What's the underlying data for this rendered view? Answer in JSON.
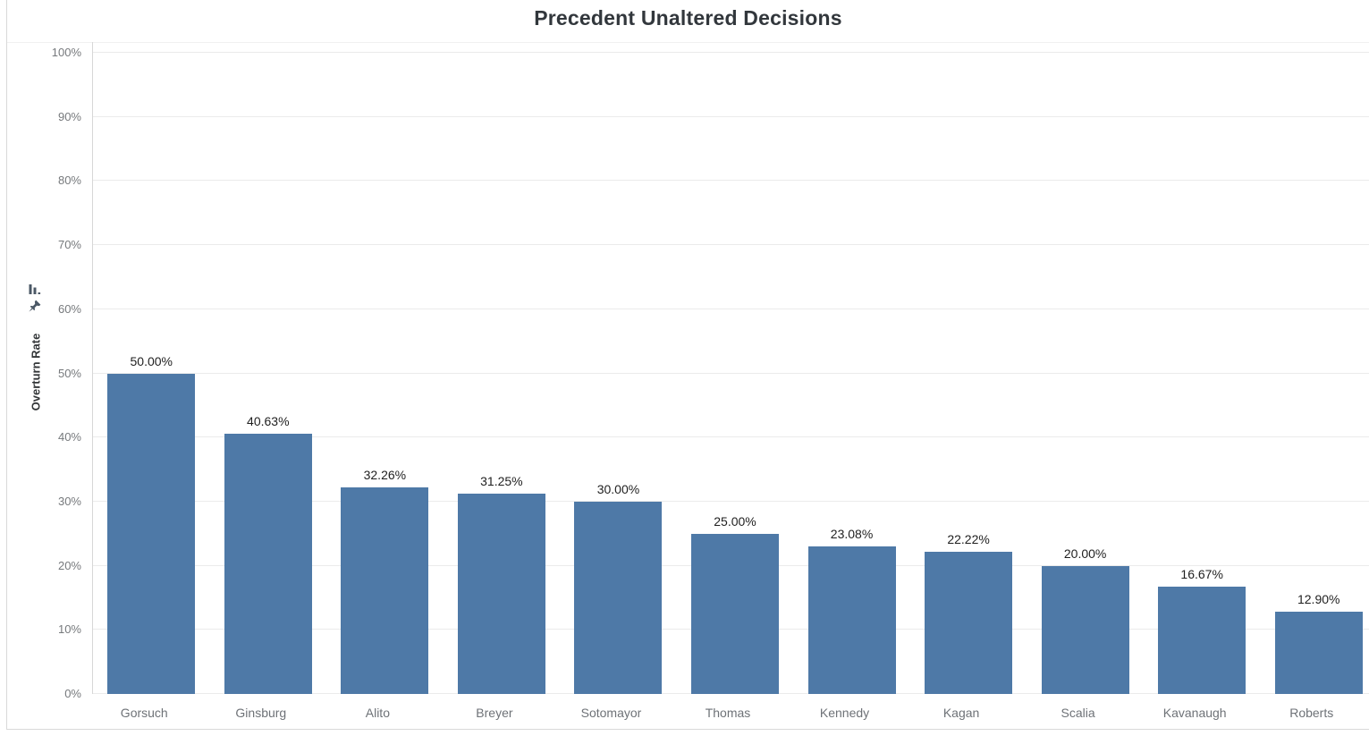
{
  "title": "Precedent Unaltered Decisions",
  "y_axis": {
    "label": "Overturn Rate",
    "tick_labels": [
      "0%",
      "10%",
      "20%",
      "30%",
      "40%",
      "50%",
      "60%",
      "70%",
      "80%",
      "90%",
      "100%"
    ]
  },
  "axis_controls": {
    "sort_icon": "sort-descending-bars",
    "pin_icon": "pinned-axis"
  },
  "chart_data": {
    "type": "bar",
    "title": "Precedent Unaltered Decisions",
    "categories": [
      "Gorsuch",
      "Ginsburg",
      "Alito",
      "Breyer",
      "Sotomayor",
      "Thomas",
      "Kennedy",
      "Kagan",
      "Scalia",
      "Kavanaugh",
      "Roberts"
    ],
    "values": [
      50.0,
      40.63,
      32.26,
      31.25,
      30.0,
      25.0,
      23.08,
      22.22,
      20.0,
      16.67,
      12.9
    ],
    "value_labels": [
      "50.00%",
      "40.63%",
      "32.26%",
      "31.25%",
      "30.00%",
      "25.00%",
      "23.08%",
      "22.22%",
      "20.00%",
      "16.67%",
      "12.90%"
    ],
    "xlabel": "",
    "ylabel": "Overturn Rate",
    "ylim": [
      0,
      100
    ],
    "y_tick_step": 10,
    "grid": true,
    "legend": false,
    "bar_color": "#4e79a7"
  },
  "colors": {
    "bar": "#4e79a7",
    "title_text": "#32373c",
    "tick_text": "#76797c",
    "category_text": "#6e7277",
    "value_label_text": "#1f1f1f",
    "gridline": "#ebebeb",
    "axis_line": "#d7d7d7",
    "card_border": "#d9d9d9",
    "icon": "#4b5866"
  }
}
